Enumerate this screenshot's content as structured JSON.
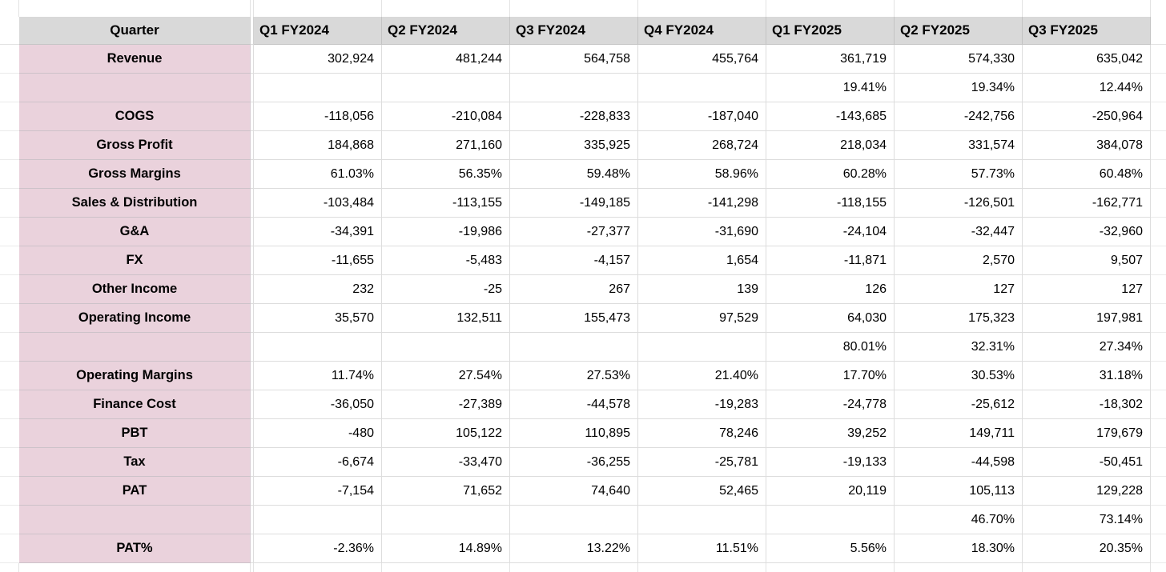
{
  "colors": {
    "header_bg": "#d9d9d9",
    "label_column_bg": "#ead2dc",
    "gridline": "#dddddd",
    "text": "#000000"
  },
  "table": {
    "header": {
      "row_label": "Quarter",
      "columns": [
        "Q1 FY2024",
        "Q2 FY2024",
        "Q3 FY2024",
        "Q4 FY2024",
        "Q1 FY2025",
        "Q2 FY2025",
        "Q3 FY2025"
      ]
    },
    "rows": [
      {
        "label": "Revenue",
        "values": [
          "302,924",
          "481,244",
          "564,758",
          "455,764",
          "361,719",
          "574,330",
          "635,042"
        ]
      },
      {
        "label": "",
        "values": [
          "",
          "",
          "",
          "",
          "19.41%",
          "19.34%",
          "12.44%"
        ]
      },
      {
        "label": "COGS",
        "values": [
          "-118,056",
          "-210,084",
          "-228,833",
          "-187,040",
          "-143,685",
          "-242,756",
          "-250,964"
        ]
      },
      {
        "label": "Gross Profit",
        "values": [
          "184,868",
          "271,160",
          "335,925",
          "268,724",
          "218,034",
          "331,574",
          "384,078"
        ]
      },
      {
        "label": "Gross Margins",
        "values": [
          "61.03%",
          "56.35%",
          "59.48%",
          "58.96%",
          "60.28%",
          "57.73%",
          "60.48%"
        ]
      },
      {
        "label": "Sales & Distribution",
        "values": [
          "-103,484",
          "-113,155",
          "-149,185",
          "-141,298",
          "-118,155",
          "-126,501",
          "-162,771"
        ]
      },
      {
        "label": "G&A",
        "values": [
          "-34,391",
          "-19,986",
          "-27,377",
          "-31,690",
          "-24,104",
          "-32,447",
          "-32,960"
        ]
      },
      {
        "label": "FX",
        "values": [
          "-11,655",
          "-5,483",
          "-4,157",
          "1,654",
          "-11,871",
          "2,570",
          "9,507"
        ]
      },
      {
        "label": "Other Income",
        "values": [
          "232",
          "-25",
          "267",
          "139",
          "126",
          "127",
          "127"
        ]
      },
      {
        "label": "Operating Income",
        "values": [
          "35,570",
          "132,511",
          "155,473",
          "97,529",
          "64,030",
          "175,323",
          "197,981"
        ]
      },
      {
        "label": "",
        "values": [
          "",
          "",
          "",
          "",
          "80.01%",
          "32.31%",
          "27.34%"
        ]
      },
      {
        "label": "Operating Margins",
        "values": [
          "11.74%",
          "27.54%",
          "27.53%",
          "21.40%",
          "17.70%",
          "30.53%",
          "31.18%"
        ]
      },
      {
        "label": "Finance Cost",
        "values": [
          "-36,050",
          "-27,389",
          "-44,578",
          "-19,283",
          "-24,778",
          "-25,612",
          "-18,302"
        ]
      },
      {
        "label": "PBT",
        "values": [
          "-480",
          "105,122",
          "110,895",
          "78,246",
          "39,252",
          "149,711",
          "179,679"
        ]
      },
      {
        "label": "Tax",
        "values": [
          "-6,674",
          "-33,470",
          "-36,255",
          "-25,781",
          "-19,133",
          "-44,598",
          "-50,451"
        ]
      },
      {
        "label": "PAT",
        "values": [
          "-7,154",
          "71,652",
          "74,640",
          "52,465",
          "20,119",
          "105,113",
          "129,228"
        ]
      },
      {
        "label": "",
        "values": [
          "",
          "",
          "",
          "",
          "",
          "46.70%",
          "73.14%"
        ]
      },
      {
        "label": "PAT%",
        "values": [
          "-2.36%",
          "14.89%",
          "13.22%",
          "11.51%",
          "5.56%",
          "18.30%",
          "20.35%"
        ]
      }
    ]
  }
}
